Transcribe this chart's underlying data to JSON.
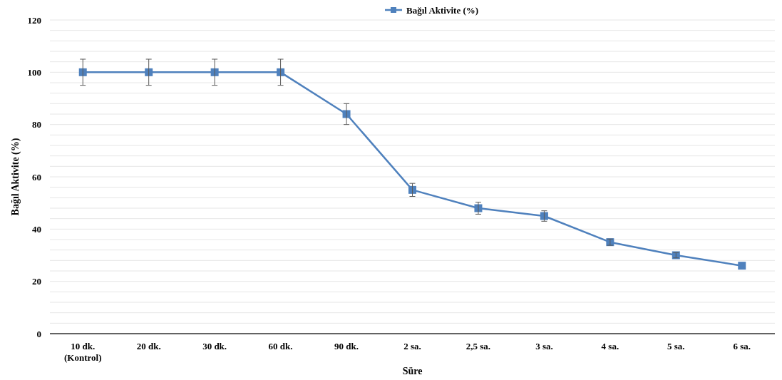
{
  "chart_data": {
    "type": "line",
    "xlabel": "Süre",
    "ylabel": "Bağıl Aktivite (%)",
    "categories": [
      "10 dk.\n(Kontrol)",
      "20 dk.",
      "30 dk.",
      "60 dk.",
      "90 dk.",
      "2 sa.",
      "2,5 sa.",
      "3 sa.",
      "4 sa.",
      "5 sa.",
      "6 sa."
    ],
    "series": [
      {
        "name": "Bağıl Aktivite (%)",
        "color": "#4f81bd",
        "values": [
          100,
          100,
          100,
          100,
          84,
          55,
          48,
          45,
          35,
          30,
          26
        ],
        "errors": [
          5,
          5,
          5,
          5,
          4,
          2.5,
          2.3,
          2,
          1.2,
          1,
          null
        ]
      }
    ],
    "ylim": [
      0,
      120
    ],
    "yticks": [
      0,
      {
        "value": 4,
        "label": null
      },
      {
        "value": 8,
        "label": null
      },
      {
        "value": 12,
        "label": null
      },
      {
        "value": 16,
        "label": null
      },
      20,
      {
        "value": 24,
        "label": null
      },
      {
        "value": 28,
        "label": null
      },
      {
        "value": 32,
        "label": null
      },
      {
        "value": 36,
        "label": null
      },
      40,
      {
        "value": 44,
        "label": null
      },
      {
        "value": 48,
        "label": null
      },
      {
        "value": 52,
        "label": null
      },
      {
        "value": 56,
        "label": null
      },
      60,
      {
        "value": 64,
        "label": null
      },
      {
        "value": 68,
        "label": null
      },
      {
        "value": 72,
        "label": null
      },
      {
        "value": 76,
        "label": null
      },
      80,
      {
        "value": 84,
        "label": null
      },
      {
        "value": 88,
        "label": null
      },
      {
        "value": 92,
        "label": null
      },
      {
        "value": 96,
        "label": null
      },
      100,
      {
        "value": 104,
        "label": null
      },
      {
        "value": 108,
        "label": null
      },
      {
        "value": 112,
        "label": null
      },
      {
        "value": 116,
        "label": null
      },
      120
    ],
    "grid": "y",
    "legend": "top",
    "marker": "square",
    "line_style": "solid"
  }
}
